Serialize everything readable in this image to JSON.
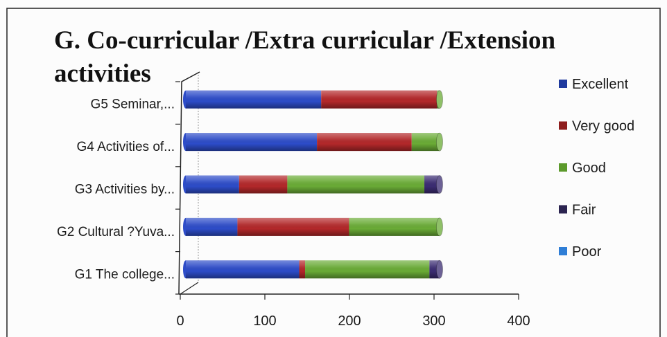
{
  "chart_data": {
    "type": "bar",
    "orientation": "horizontal",
    "stacked": true,
    "style": "3d-cylinder",
    "title": "G. Co-curricular /Extra curricular /Extension activities",
    "xlabel": "",
    "ylabel": "",
    "categories": [
      "G1 The college...",
      "G2 Cultural ?Yuva...",
      "G3 Activities by...",
      "G4 Activities of...",
      "G5 Seminar,..."
    ],
    "series": [
      {
        "name": "Excellent",
        "color": "#2d4cc8",
        "legend_color": "#1f3a9e",
        "values": [
          134,
          61,
          63,
          155,
          160
        ]
      },
      {
        "name": "Very good",
        "color": "#b3282a",
        "legend_color": "#8e1d1d",
        "values": [
          7,
          132,
          57,
          112,
          137
        ]
      },
      {
        "name": "Good",
        "color": "#6aab36",
        "legend_color": "#5c9a2c",
        "values": [
          147,
          107,
          162,
          33,
          3
        ]
      },
      {
        "name": "Fair",
        "color": "#3b2c72",
        "legend_color": "#2b2450",
        "values": [
          12,
          0,
          18,
          0,
          0
        ]
      },
      {
        "name": "Poor",
        "color": "#2f80d2",
        "legend_color": "#2f7ed6",
        "values": [
          0,
          0,
          0,
          0,
          0
        ]
      }
    ],
    "xlim": [
      0,
      400
    ],
    "xticks": [
      0,
      100,
      200,
      300,
      400
    ],
    "grid": false,
    "legend": "right"
  }
}
